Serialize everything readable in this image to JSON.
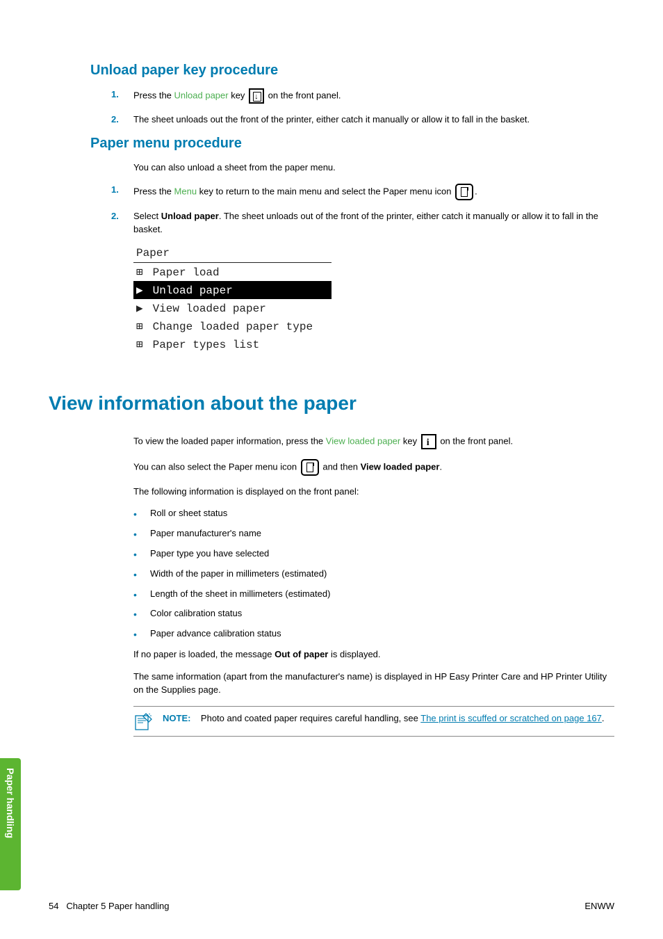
{
  "sideTab": "Paper handling",
  "sections": {
    "s1": {
      "heading": "Unload paper key procedure",
      "steps": {
        "one": {
          "num": "1.",
          "pre": "Press the ",
          "green": "Unload paper",
          "mid": " key ",
          "post": " on the front panel."
        },
        "two": {
          "num": "2.",
          "text": "The sheet unloads out the front of the printer, either catch it manually or allow it to fall in the basket."
        }
      }
    },
    "s2": {
      "heading": "Paper menu procedure",
      "intro": "You can also unload a sheet from the paper menu.",
      "steps": {
        "one": {
          "num": "1.",
          "pre": "Press the ",
          "green": "Menu",
          "mid": " key to return to the main menu and select the Paper menu icon ",
          "post": "."
        },
        "two": {
          "num": "2.",
          "pre": "Select ",
          "bold": "Unload paper",
          "post": ". The sheet unloads out of the front of the printer, either catch it manually or allow it to fall in the basket."
        }
      },
      "menu": {
        "title": "Paper",
        "rows": [
          {
            "glyph": "⊞",
            "label": "Paper load",
            "selected": false
          },
          {
            "glyph": "▶",
            "label": "Unload paper",
            "selected": true
          },
          {
            "glyph": "▶",
            "label": "View loaded paper",
            "selected": false
          },
          {
            "glyph": "⊞",
            "label": "Change loaded paper type",
            "selected": false
          },
          {
            "glyph": "⊞",
            "label": "Paper types list",
            "selected": false
          }
        ]
      }
    },
    "s3": {
      "heading": "View information about the paper",
      "p1": {
        "pre": "To view the loaded paper information, press the ",
        "green": "View loaded paper",
        "mid": " key ",
        "post": " on the front panel."
      },
      "p2": {
        "pre": "You can also select the Paper menu icon ",
        "mid": " and then ",
        "bold": "View loaded paper",
        "post": "."
      },
      "p3": "The following information is displayed on the front panel:",
      "bullets": [
        "Roll or sheet status",
        "Paper manufacturer's name",
        "Paper type you have selected",
        "Width of the paper in millimeters (estimated)",
        "Length of the sheet in millimeters (estimated)",
        "Color calibration status",
        "Paper advance calibration status"
      ],
      "p4": {
        "pre": "If no paper is loaded, the message ",
        "bold": "Out of paper",
        "post": " is displayed."
      },
      "p5": "The same information (apart from the manufacturer's name) is displayed in HP Easy Printer Care and HP Printer Utility on the Supplies page.",
      "note": {
        "label": "NOTE:",
        "text": "Photo and coated paper requires careful handling, see ",
        "link": "The print is scuffed or scratched on page 167",
        "post": "."
      }
    }
  },
  "footer": {
    "left_page": "54",
    "left_text": "Chapter 5   Paper handling",
    "right": "ENWW"
  }
}
